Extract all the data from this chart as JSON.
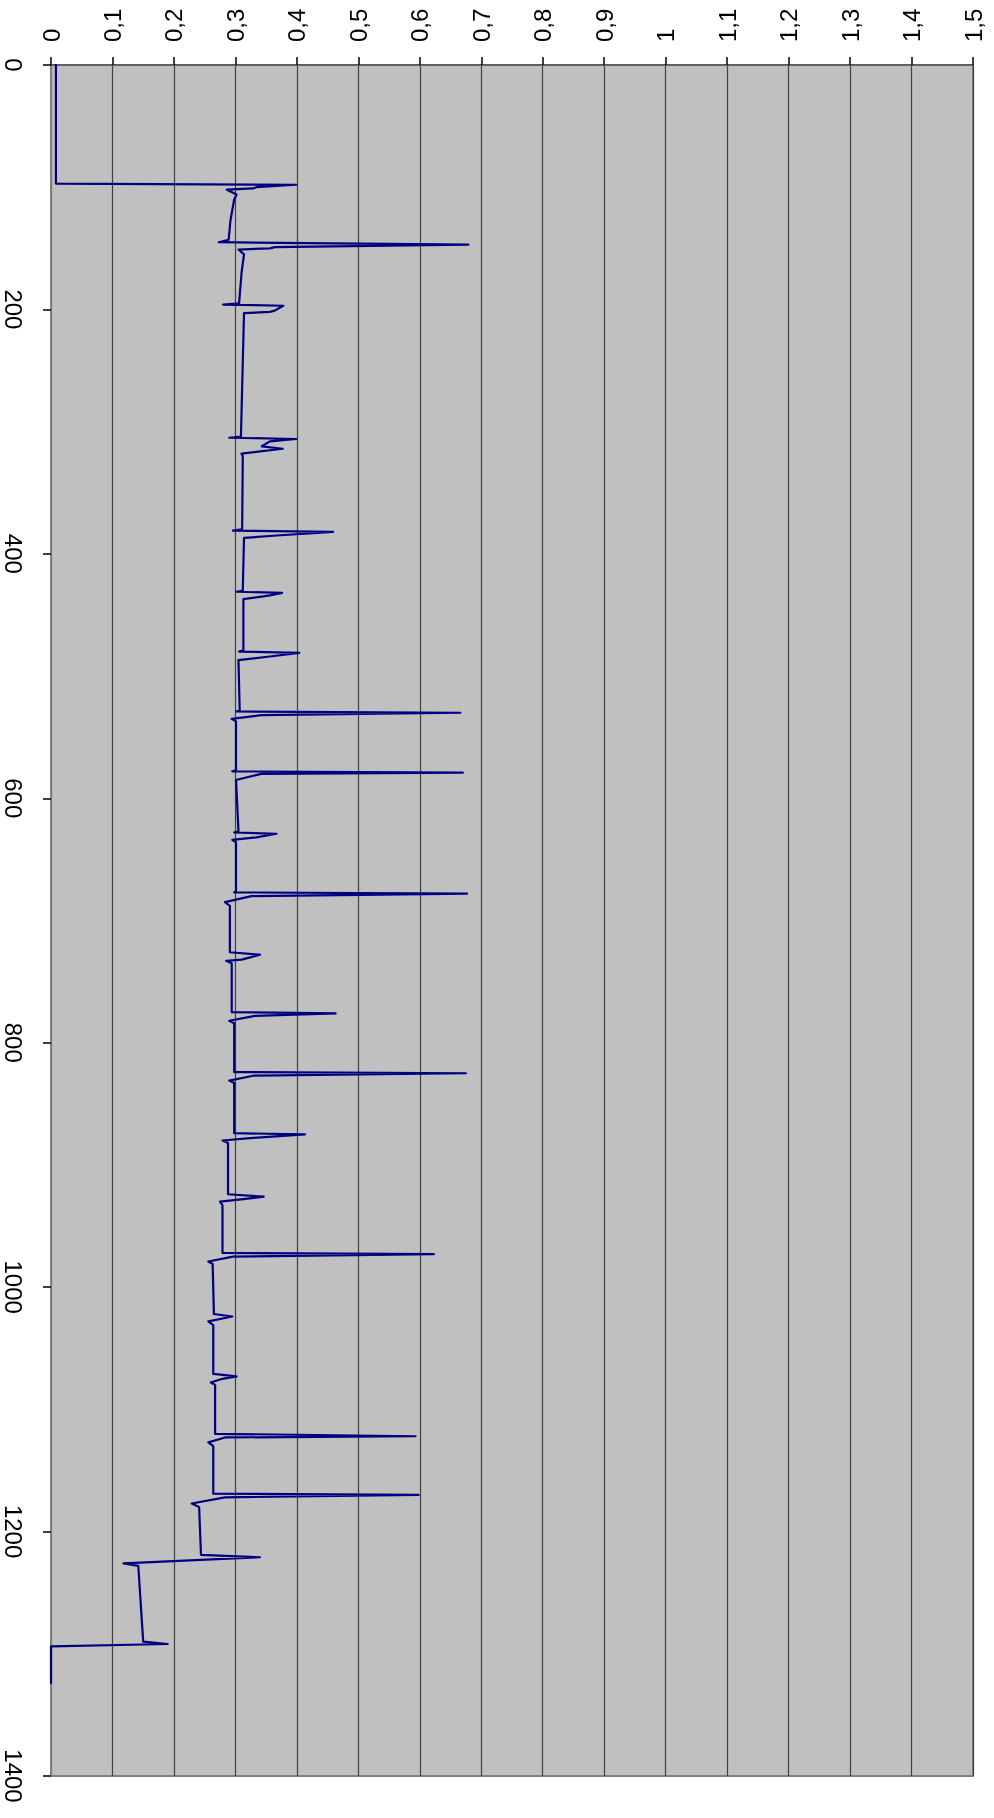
{
  "chart_data": {
    "type": "line",
    "color": "#000080",
    "grid": "x",
    "xlim": [
      0,
      1.5
    ],
    "xticks": [
      0,
      {
        "value": 0.1,
        "label": "0,1"
      },
      {
        "value": 0.2,
        "label": "0,2"
      },
      {
        "value": 0.3,
        "label": "0,3"
      },
      {
        "value": 0.4,
        "label": "0,4"
      },
      {
        "value": 0.5,
        "label": "0,5"
      },
      {
        "value": 0.6,
        "label": "0,6"
      },
      {
        "value": 0.7,
        "label": "0,7"
      },
      {
        "value": 0.8,
        "label": "0,8"
      },
      {
        "value": 0.9,
        "label": "0,9"
      },
      1,
      {
        "value": 1.1,
        "label": "1,1"
      },
      {
        "value": 1.2,
        "label": "1,2"
      },
      {
        "value": 1.3,
        "label": "1,3"
      },
      {
        "value": 1.4,
        "label": "1,4"
      },
      {
        "value": 1.5,
        "label": "1,5"
      }
    ],
    "ylim": [
      1400,
      0
    ],
    "yticks": [
      0,
      200,
      400,
      600,
      800,
      1000,
      1200,
      1400
    ],
    "x": [
      0.008,
      0.008,
      0.399,
      0.334,
      0.329,
      0.286,
      0.302,
      0.298,
      0.292,
      0.289,
      0.273,
      0.679,
      0.364,
      0.356,
      0.305,
      0.314,
      0.31,
      0.306,
      0.28,
      0.378,
      0.364,
      0.356,
      0.314,
      0.309,
      0.29,
      0.399,
      0.356,
      0.343,
      0.377,
      0.31,
      0.312,
      0.311,
      0.296,
      0.459,
      0.367,
      0.314,
      0.312,
      0.302,
      0.376,
      0.356,
      0.343,
      0.313,
      0.313,
      0.306,
      0.404,
      0.356,
      0.305,
      0.307,
      0.302,
      0.666,
      0.342,
      0.294,
      0.301,
      0.301,
      0.295,
      0.67,
      0.342,
      0.301,
      0.305,
      0.298,
      0.367,
      0.334,
      0.295,
      0.301,
      0.301,
      0.298,
      0.677,
      0.326,
      0.283,
      0.291,
      0.291,
      0.34,
      0.31,
      0.285,
      0.294,
      0.294,
      0.463,
      0.332,
      0.29,
      0.298,
      0.298,
      0.675,
      0.329,
      0.29,
      0.298,
      0.298,
      0.413,
      0.324,
      0.279,
      0.288,
      0.288,
      0.346,
      0.313,
      0.275,
      0.279,
      0.279,
      0.623,
      0.296,
      0.256,
      0.263,
      0.265,
      0.295,
      0.256,
      0.264,
      0.264,
      0.302,
      0.279,
      0.26,
      0.267,
      0.267,
      0.593,
      0.283,
      0.256,
      0.264,
      0.264,
      0.598,
      0.283,
      0.229,
      0.241,
      0.244,
      0.34,
      0.118,
      0.142,
      0.15,
      0.19,
      0,
      0
    ],
    "values": [
      0,
      97,
      98,
      100,
      101,
      102,
      106,
      110,
      127,
      143,
      145,
      147,
      149,
      150,
      151,
      155,
      170,
      195,
      196,
      197,
      201,
      202,
      203,
      304,
      305,
      306,
      308,
      312,
      314,
      318,
      320,
      380,
      381,
      382,
      385,
      387,
      430,
      431,
      432,
      434,
      435,
      437,
      479,
      480,
      481,
      484,
      487,
      528,
      529,
      530,
      532,
      535,
      537,
      577,
      578,
      579,
      580,
      585,
      627,
      628,
      629,
      632,
      634,
      636,
      676,
      677,
      678,
      680,
      685,
      688,
      726,
      728,
      732,
      733,
      735,
      775,
      776,
      778,
      782,
      784,
      824,
      825,
      827,
      831,
      833,
      874,
      875,
      878,
      880,
      882,
      924,
      926,
      928,
      930,
      933,
      972,
      973,
      975,
      979,
      981,
      1022,
      1024,
      1028,
      1031,
      1071,
      1073,
      1075,
      1078,
      1080,
      1120,
      1122,
      1123,
      1127,
      1130,
      1169,
      1170,
      1172,
      1177,
      1180,
      1219,
      1221,
      1226,
      1228,
      1290,
      1292,
      1294,
      1324
    ]
  }
}
